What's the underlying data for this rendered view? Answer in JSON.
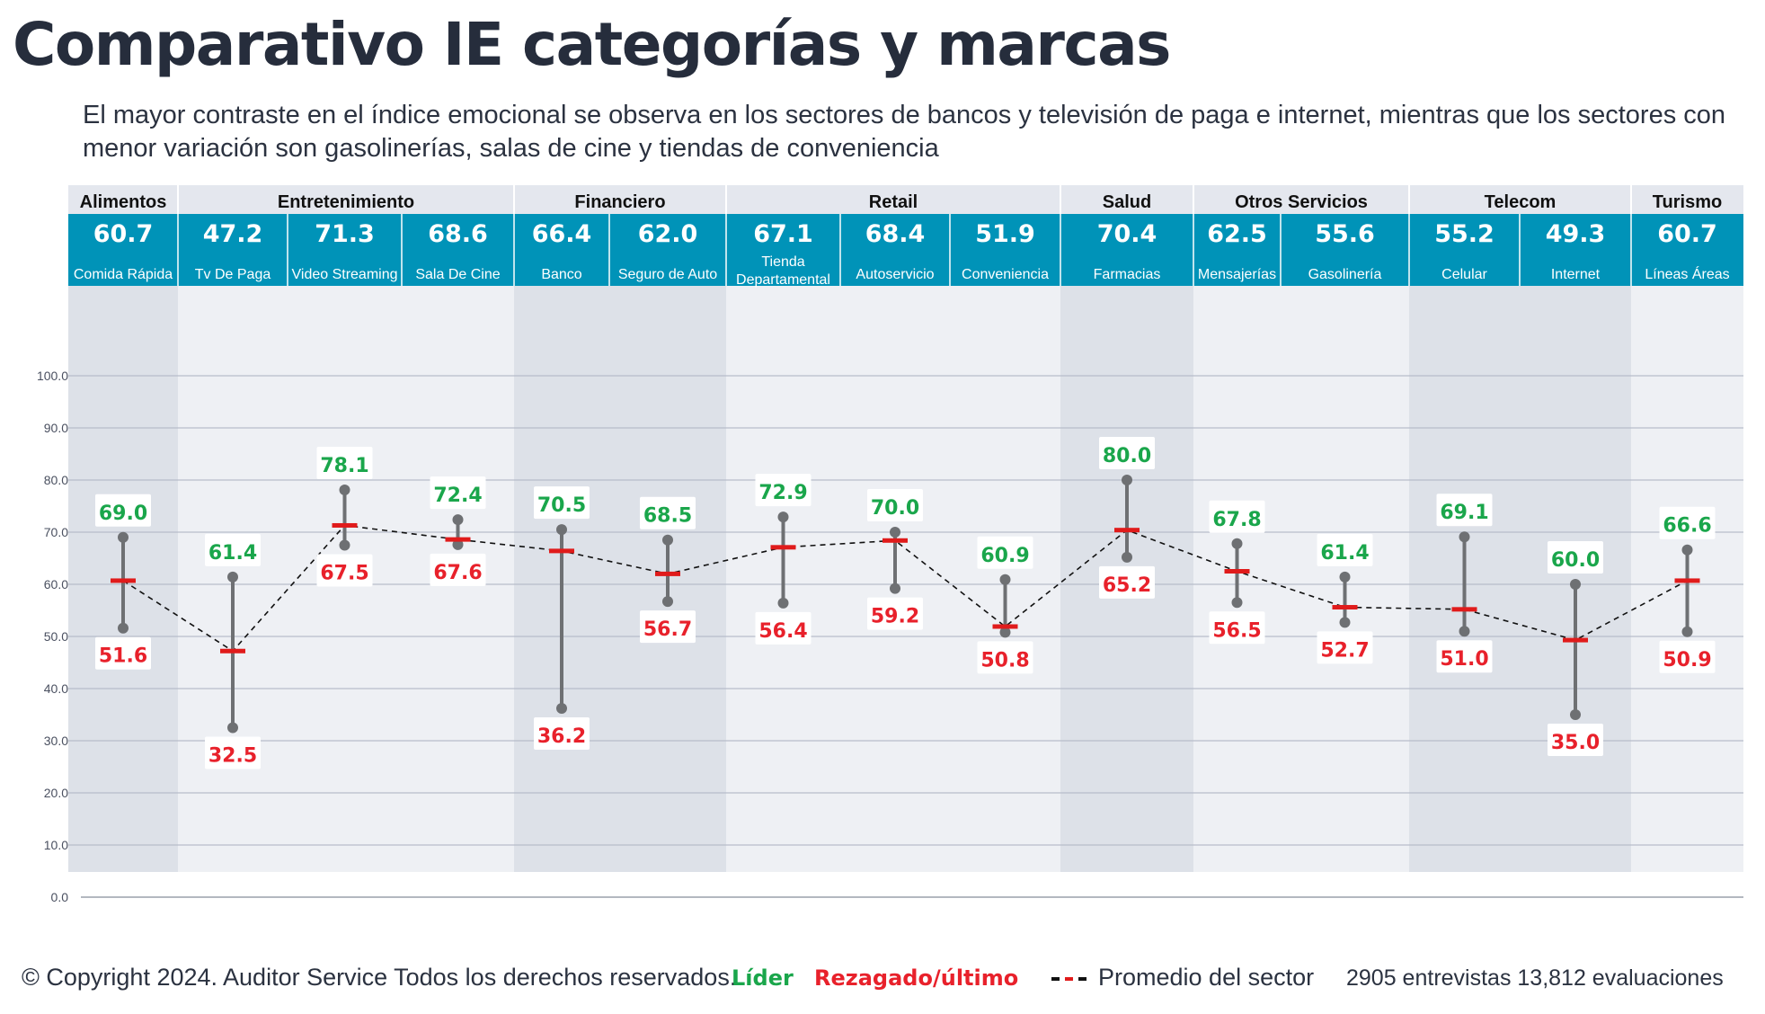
{
  "title": "Comparativo IE categorías y marcas",
  "subtitle": "El mayor contraste en el índice emocional se observa en los sectores de bancos y televisión de paga e internet, mientras que los sectores con menor variación son gasolinerías, salas de cine y tiendas de conveniencia",
  "colors": {
    "leader": "#1aa64b",
    "laggard": "#e8212b",
    "header_band": "#0093b8",
    "average_marker": "#e01b1b",
    "range_line": "#6e7073"
  },
  "footer": {
    "copyright": "© Copyright 2024. Auditor Service Todos los derechos reservados.",
    "legend_leader": "Líder",
    "legend_laggard": "Rezagado/último",
    "legend_average": "Promedio del sector",
    "stats": "2905 entrevistas 13,812 evaluaciones"
  },
  "chart_data": {
    "type": "range-dot",
    "title": "Comparativo IE categorías y marcas",
    "y_axis": {
      "min": 0,
      "max": 100,
      "step": 10,
      "ticks": [
        "0.0",
        "10.0",
        "20.0",
        "30.0",
        "40.0",
        "50.0",
        "60.0",
        "70.0",
        "80.0",
        "90.0",
        "100.0"
      ]
    },
    "grid": true,
    "sectors": [
      {
        "name": "Alimentos",
        "shaded": true,
        "span": [
          0,
          0
        ]
      },
      {
        "name": "Entretenimiento",
        "shaded": false,
        "span": [
          1,
          3
        ]
      },
      {
        "name": "Financiero",
        "shaded": true,
        "span": [
          4,
          5
        ]
      },
      {
        "name": "Retail",
        "shaded": false,
        "span": [
          6,
          8
        ]
      },
      {
        "name": "Salud",
        "shaded": true,
        "span": [
          9,
          9
        ]
      },
      {
        "name": "Otros Servicios",
        "shaded": false,
        "span": [
          10,
          11
        ]
      },
      {
        "name": "Telecom",
        "shaded": true,
        "span": [
          12,
          13
        ]
      },
      {
        "name": "Turismo",
        "shaded": false,
        "span": [
          14,
          14
        ]
      }
    ],
    "categories": [
      {
        "name": "Comida Rápida",
        "average": 60.7,
        "leader": 69.0,
        "laggard": 51.6
      },
      {
        "name": "Tv De Paga",
        "average": 47.2,
        "leader": 61.4,
        "laggard": 32.5
      },
      {
        "name": "Video Streaming",
        "average": 71.3,
        "leader": 78.1,
        "laggard": 67.5
      },
      {
        "name": "Sala De Cine",
        "average": 68.6,
        "leader": 72.4,
        "laggard": 67.6
      },
      {
        "name": "Banco",
        "average": 66.4,
        "leader": 70.5,
        "laggard": 36.2
      },
      {
        "name": "Seguro de Auto",
        "average": 62.0,
        "leader": 68.5,
        "laggard": 56.7
      },
      {
        "name": "Tienda Departamental",
        "average": 67.1,
        "leader": 72.9,
        "laggard": 56.4
      },
      {
        "name": "Autoservicio",
        "average": 68.4,
        "leader": 70.0,
        "laggard": 59.2
      },
      {
        "name": "Conveniencia",
        "average": 51.9,
        "leader": 60.9,
        "laggard": 50.8
      },
      {
        "name": "Farmacias",
        "average": 70.4,
        "leader": 80.0,
        "laggard": 65.2
      },
      {
        "name": "Mensajerías",
        "average": 62.5,
        "leader": 67.8,
        "laggard": 56.5
      },
      {
        "name": "Gasolinería",
        "average": 55.6,
        "leader": 61.4,
        "laggard": 52.7
      },
      {
        "name": "Celular",
        "average": 55.2,
        "leader": 69.1,
        "laggard": 51.0
      },
      {
        "name": "Internet",
        "average": 49.3,
        "leader": 60.0,
        "laggard": 35.0
      },
      {
        "name": "Líneas Áreas",
        "average": 60.7,
        "leader": 66.6,
        "laggard": 50.9
      }
    ]
  }
}
